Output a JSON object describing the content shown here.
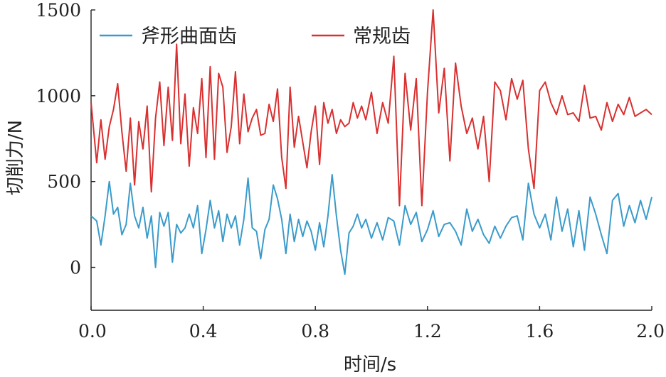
{
  "chart_data": {
    "type": "line",
    "xlabel": "时间/s",
    "ylabel": "切削力/N",
    "xlim": [
      0,
      2.0
    ],
    "ylim": [
      -250,
      1500
    ],
    "x_ticks": [
      "0.0",
      "0.4",
      "0.8",
      "1.2",
      "1.6",
      "2.0"
    ],
    "y_ticks": [
      "0",
      "500",
      "1000",
      "1500"
    ],
    "grid": false,
    "legend_position": "top",
    "series": [
      {
        "name": "斧形曲面齿",
        "color": "#3a9bcb",
        "x": [
          0.0,
          0.02,
          0.035,
          0.05,
          0.065,
          0.08,
          0.095,
          0.11,
          0.125,
          0.14,
          0.155,
          0.17,
          0.185,
          0.2,
          0.215,
          0.23,
          0.245,
          0.26,
          0.275,
          0.29,
          0.305,
          0.32,
          0.335,
          0.35,
          0.365,
          0.38,
          0.395,
          0.41,
          0.425,
          0.44,
          0.455,
          0.47,
          0.485,
          0.5,
          0.515,
          0.53,
          0.545,
          0.56,
          0.575,
          0.59,
          0.605,
          0.62,
          0.635,
          0.65,
          0.665,
          0.68,
          0.695,
          0.71,
          0.725,
          0.74,
          0.755,
          0.77,
          0.785,
          0.8,
          0.815,
          0.83,
          0.845,
          0.86,
          0.875,
          0.89,
          0.905,
          0.92,
          0.935,
          0.95,
          0.965,
          0.98,
          1.0,
          1.02,
          1.04,
          1.06,
          1.08,
          1.1,
          1.12,
          1.14,
          1.16,
          1.18,
          1.2,
          1.22,
          1.24,
          1.26,
          1.28,
          1.3,
          1.32,
          1.34,
          1.36,
          1.38,
          1.4,
          1.42,
          1.44,
          1.46,
          1.48,
          1.5,
          1.52,
          1.54,
          1.56,
          1.58,
          1.6,
          1.62,
          1.64,
          1.66,
          1.68,
          1.7,
          1.72,
          1.74,
          1.76,
          1.78,
          1.8,
          1.82,
          1.84,
          1.86,
          1.88,
          1.9,
          1.92,
          1.94,
          1.96,
          1.98,
          2.0
        ],
        "values": [
          300,
          270,
          130,
          300,
          500,
          310,
          350,
          190,
          250,
          490,
          300,
          230,
          350,
          170,
          300,
          0,
          320,
          240,
          320,
          30,
          250,
          200,
          230,
          310,
          230,
          360,
          80,
          220,
          390,
          230,
          330,
          150,
          310,
          230,
          300,
          130,
          280,
          520,
          230,
          210,
          50,
          220,
          280,
          480,
          400,
          280,
          80,
          310,
          150,
          280,
          180,
          270,
          210,
          100,
          260,
          120,
          300,
          540,
          300,
          100,
          -40,
          200,
          240,
          310,
          230,
          280,
          170,
          260,
          160,
          290,
          270,
          130,
          360,
          250,
          320,
          150,
          220,
          330,
          180,
          250,
          260,
          210,
          130,
          340,
          210,
          280,
          190,
          140,
          240,
          170,
          240,
          290,
          300,
          160,
          490,
          310,
          230,
          310,
          160,
          410,
          210,
          340,
          120,
          330,
          100,
          410,
          310,
          190,
          80,
          390,
          430,
          240,
          360,
          260,
          390,
          280,
          410
        ]
      },
      {
        "name": "常规齿",
        "color": "#d93030",
        "x": [
          0.0,
          0.02,
          0.035,
          0.05,
          0.065,
          0.08,
          0.095,
          0.11,
          0.125,
          0.14,
          0.155,
          0.17,
          0.185,
          0.2,
          0.215,
          0.23,
          0.245,
          0.26,
          0.275,
          0.29,
          0.305,
          0.32,
          0.335,
          0.35,
          0.365,
          0.38,
          0.395,
          0.41,
          0.425,
          0.44,
          0.455,
          0.47,
          0.485,
          0.5,
          0.515,
          0.53,
          0.545,
          0.56,
          0.575,
          0.59,
          0.605,
          0.62,
          0.635,
          0.65,
          0.665,
          0.68,
          0.695,
          0.71,
          0.725,
          0.74,
          0.755,
          0.77,
          0.785,
          0.8,
          0.815,
          0.83,
          0.845,
          0.86,
          0.875,
          0.89,
          0.905,
          0.92,
          0.935,
          0.95,
          0.965,
          0.98,
          1.0,
          1.02,
          1.04,
          1.06,
          1.08,
          1.1,
          1.12,
          1.14,
          1.16,
          1.18,
          1.2,
          1.22,
          1.24,
          1.26,
          1.28,
          1.3,
          1.32,
          1.34,
          1.36,
          1.38,
          1.4,
          1.42,
          1.44,
          1.46,
          1.48,
          1.5,
          1.52,
          1.54,
          1.56,
          1.58,
          1.6,
          1.62,
          1.64,
          1.66,
          1.68,
          1.7,
          1.72,
          1.74,
          1.76,
          1.78,
          1.8,
          1.82,
          1.84,
          1.86,
          1.88,
          1.9,
          1.92,
          1.94,
          1.96,
          1.98,
          2.0
        ],
        "values": [
          960,
          610,
          860,
          630,
          820,
          920,
          1070,
          790,
          560,
          870,
          480,
          850,
          690,
          940,
          440,
          870,
          1080,
          710,
          1050,
          740,
          1300,
          720,
          1010,
          590,
          930,
          780,
          1100,
          640,
          1170,
          630,
          1130,
          1050,
          670,
          820,
          1140,
          720,
          1010,
          790,
          870,
          920,
          770,
          780,
          950,
          850,
          1040,
          640,
          460,
          1050,
          700,
          880,
          730,
          580,
          790,
          940,
          600,
          960,
          840,
          920,
          780,
          860,
          820,
          840,
          960,
          870,
          940,
          860,
          1020,
          780,
          960,
          840,
          1230,
          360,
          1130,
          800,
          1100,
          360,
          1020,
          1500,
          900,
          1160,
          620,
          1190,
          940,
          780,
          870,
          690,
          880,
          500,
          1080,
          1030,
          860,
          1100,
          980,
          1090,
          690,
          460,
          1030,
          1080,
          960,
          890,
          1000,
          890,
          900,
          850,
          1060,
          870,
          880,
          800,
          960,
          850,
          950,
          890,
          990,
          880,
          900,
          920,
          890
        ]
      }
    ]
  }
}
